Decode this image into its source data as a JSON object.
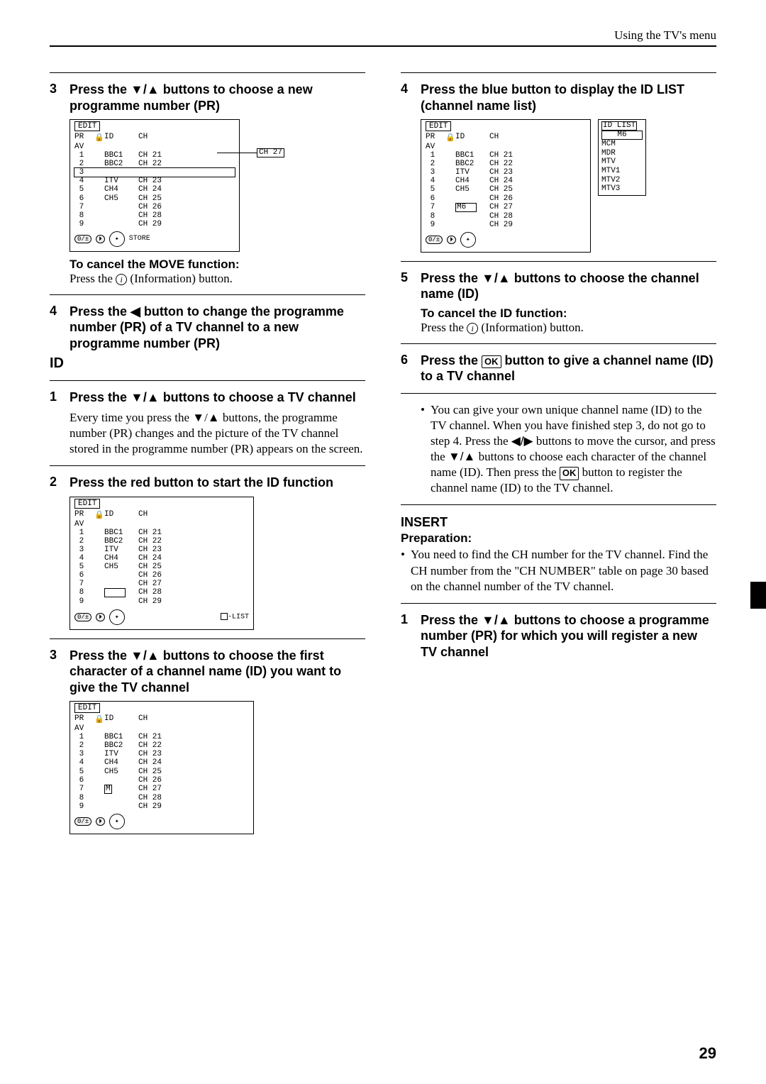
{
  "header": {
    "context": "Using the TV's menu"
  },
  "page_number": "29",
  "left": {
    "step3": {
      "num": "3",
      "title_pre": "Press the ",
      "title_post": " buttons to choose a new programme number (PR)",
      "edit_title": "EDIT",
      "head": {
        "pr": "PR",
        "lock": "🔒",
        "id": "ID",
        "ch": "CH"
      },
      "rows": [
        {
          "pr": "AV",
          "id": "",
          "ch": ""
        },
        {
          "pr": " 1",
          "id": "BBC1",
          "ch": "CH 21"
        },
        {
          "pr": " 2",
          "id": "BBC2",
          "ch": "CH 22"
        },
        {
          "pr": " 3",
          "id": "",
          "ch": "",
          "boxed": true,
          "box_left": true
        },
        {
          "pr": " 4",
          "id": "ITV",
          "ch": "CH 23"
        },
        {
          "pr": " 5",
          "id": "CH4",
          "ch": "CH 24"
        },
        {
          "pr": " 6",
          "id": "CH5",
          "ch": "CH 25"
        },
        {
          "pr": " 7",
          "id": "",
          "ch": "CH 26"
        },
        {
          "pr": " 8",
          "id": "",
          "ch": "CH 28"
        },
        {
          "pr": " 9",
          "id": "",
          "ch": "CH 29"
        }
      ],
      "annot": "CH 27",
      "remote_label": "STORE",
      "cancel_title": "To cancel the MOVE function:",
      "cancel_body_pre": "Press the ",
      "cancel_body_post": " (Information) button."
    },
    "step4": {
      "num": "4",
      "title_pre": "Press the ",
      "title_mid": " button to change the programme number (PR) of a TV channel to a new programme number (PR)"
    },
    "id_label": "ID",
    "id_step1": {
      "num": "1",
      "title_pre": "Press the ",
      "title_post": " buttons to choose a TV channel",
      "body": "Every time you press the ▼/▲ buttons, the programme number (PR) changes and the picture of the TV channel stored in the programme number (PR) appears on the screen."
    },
    "id_step2": {
      "num": "2",
      "title": "Press the red button to start the ID function",
      "edit_title": "EDIT",
      "rows": [
        {
          "pr": "AV",
          "id": "",
          "ch": ""
        },
        {
          "pr": " 1",
          "id": "BBC1",
          "ch": "CH 21"
        },
        {
          "pr": " 2",
          "id": "BBC2",
          "ch": "CH 22"
        },
        {
          "pr": " 3",
          "id": "ITV",
          "ch": "CH 23"
        },
        {
          "pr": " 4",
          "id": "CH4",
          "ch": "CH 24"
        },
        {
          "pr": " 5",
          "id": "CH5",
          "ch": "CH 25"
        },
        {
          "pr": " 6",
          "id": "",
          "ch": "CH 26"
        },
        {
          "pr": " 7",
          "id": "",
          "ch": "CH 27"
        },
        {
          "pr": " 8",
          "id": "",
          "ch": "CH 28",
          "id_boxed": true
        },
        {
          "pr": " 9",
          "id": "",
          "ch": "CH 29"
        }
      ],
      "legend": "-LIST"
    },
    "id_step3": {
      "num": "3",
      "title_pre": "Press the ",
      "title_post": " buttons to choose the first character of a channel name (ID) you want to give the TV channel",
      "edit_title": "EDIT",
      "rows": [
        {
          "pr": "AV",
          "id": "",
          "ch": ""
        },
        {
          "pr": " 1",
          "id": "BBC1",
          "ch": "CH 21"
        },
        {
          "pr": " 2",
          "id": "BBC2",
          "ch": "CH 22"
        },
        {
          "pr": " 3",
          "id": "ITV",
          "ch": "CH 23"
        },
        {
          "pr": " 4",
          "id": "CH4",
          "ch": "CH 24"
        },
        {
          "pr": " 5",
          "id": "CH5",
          "ch": "CH 25"
        },
        {
          "pr": " 6",
          "id": "",
          "ch": "CH 26"
        },
        {
          "pr": " 7",
          "id": "M",
          "ch": "CH 27",
          "id_partboxed": true
        },
        {
          "pr": " 8",
          "id": "",
          "ch": "CH 28"
        },
        {
          "pr": " 9",
          "id": "",
          "ch": "CH 29"
        }
      ]
    }
  },
  "right": {
    "step4": {
      "num": "4",
      "title": "Press the blue button to display the ID LIST (channel name list)",
      "edit_title": "EDIT",
      "rows": [
        {
          "pr": "AV",
          "id": "",
          "ch": ""
        },
        {
          "pr": " 1",
          "id": "BBC1",
          "ch": "CH 21"
        },
        {
          "pr": " 2",
          "id": "BBC2",
          "ch": "CH 22"
        },
        {
          "pr": " 3",
          "id": "ITV",
          "ch": "CH 23"
        },
        {
          "pr": " 4",
          "id": "CH4",
          "ch": "CH 24"
        },
        {
          "pr": " 5",
          "id": "CH5",
          "ch": "CH 25"
        },
        {
          "pr": " 6",
          "id": "",
          "ch": "CH 26"
        },
        {
          "pr": " 7",
          "id": "M6",
          "ch": "CH 27",
          "id_boxed": true
        },
        {
          "pr": " 8",
          "id": "",
          "ch": "CH 28"
        },
        {
          "pr": " 9",
          "id": "",
          "ch": "CH 29"
        }
      ],
      "idlist_title": "ID LIST",
      "idlist_sel": "M6",
      "idlist": [
        "MCM",
        "MDR",
        "MTV",
        "MTV1",
        "MTV2",
        "MTV3"
      ]
    },
    "step5": {
      "num": "5",
      "title_pre": "Press the ",
      "title_post": " buttons to choose the channel name (ID)",
      "cancel_title": "To cancel the ID function:",
      "cancel_body_pre": "Press the ",
      "cancel_body_post": " (Information) button."
    },
    "step6": {
      "num": "6",
      "title_pre": "Press the ",
      "title_post": " button to give a channel name (ID) to a TV channel",
      "bullet": "You can give your own unique channel name (ID) to the TV channel. When you have finished step 3, do not go to step 4. Press the ◀/▶ buttons to move the cursor, and press the ▼/▲ buttons to choose each character of the channel name (ID). Then press the OK button to register the channel name (ID) to the TV channel."
    },
    "insert_label": "INSERT",
    "prep_label": "Preparation:",
    "prep_bullet": "You need to find the CH number for the TV channel. Find the CH number from the \"CH NUMBER\" table on page 30 based on the channel number of the TV channel.",
    "ins_step1": {
      "num": "1",
      "title_pre": "Press the ",
      "title_post": " buttons to choose a programme number (PR) for which you will register a new TV channel"
    }
  }
}
